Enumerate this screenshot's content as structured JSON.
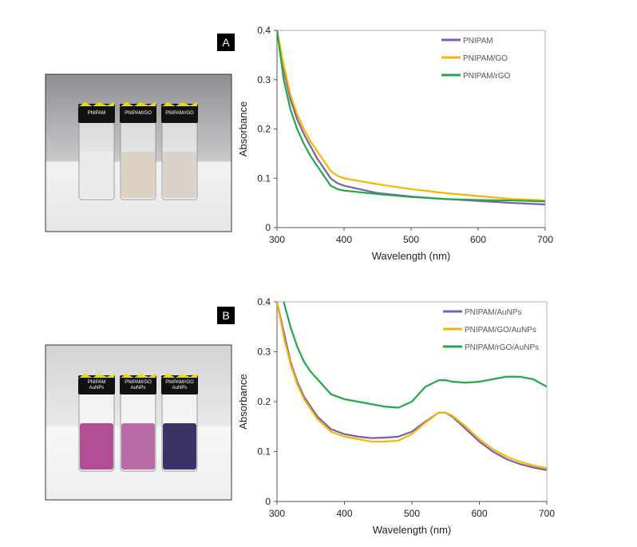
{
  "panels": [
    {
      "label": "A",
      "vials": [
        [
          "PNIPAM"
        ],
        [
          "PNIPAM/GO"
        ],
        [
          "PNIPAM/rGO"
        ]
      ]
    },
    {
      "label": "B",
      "vials": [
        [
          "PNIPAM",
          "AuNPs"
        ],
        [
          "PNIPAM/GO",
          "AuNPs"
        ],
        [
          "PNIPAM/rGO",
          "AuNPs"
        ]
      ]
    }
  ],
  "chart_data": [
    {
      "type": "line",
      "x_label": "Wavelength (nm)",
      "y_label": "Absorbance",
      "x": [
        300,
        310,
        320,
        330,
        340,
        350,
        360,
        370,
        380,
        390,
        400,
        450,
        500,
        550,
        600,
        650,
        700
      ],
      "series": [
        {
          "name": "PNIPAM",
          "color": "#7b5ea7",
          "values": [
            0.4,
            0.32,
            0.26,
            0.22,
            0.19,
            0.165,
            0.14,
            0.12,
            0.1,
            0.09,
            0.085,
            0.07,
            0.063,
            0.058,
            0.054,
            0.05,
            0.047
          ]
        },
        {
          "name": "PNIPAM/GO",
          "color": "#f5b800",
          "values": [
            0.4,
            0.33,
            0.27,
            0.23,
            0.2,
            0.175,
            0.155,
            0.135,
            0.115,
            0.105,
            0.1,
            0.088,
            0.078,
            0.07,
            0.064,
            0.058,
            0.055
          ]
        },
        {
          "name": "PNIPAM/rGO",
          "color": "#22a84a",
          "values": [
            0.4,
            0.3,
            0.24,
            0.2,
            0.17,
            0.145,
            0.125,
            0.105,
            0.085,
            0.078,
            0.075,
            0.068,
            0.062,
            0.058,
            0.056,
            0.055,
            0.053
          ]
        }
      ],
      "xlim": [
        300,
        700
      ],
      "xticks": [
        300,
        400,
        500,
        600,
        700
      ],
      "ylim": [
        0,
        0.4
      ],
      "yticks": [
        0,
        0.1,
        0.2,
        0.3,
        0.4
      ],
      "legend": "upper right"
    },
    {
      "type": "line",
      "x_label": "Wavelength (nm)",
      "y_label": "Absorbance",
      "x": [
        300,
        310,
        320,
        330,
        340,
        350,
        360,
        380,
        400,
        420,
        440,
        460,
        480,
        500,
        520,
        540,
        550,
        560,
        580,
        600,
        620,
        640,
        660,
        680,
        700
      ],
      "series": [
        {
          "name": "PNIPAM/AuNPs",
          "color": "#7b5ea7",
          "values": [
            0.4,
            0.34,
            0.28,
            0.24,
            0.21,
            0.19,
            0.17,
            0.145,
            0.135,
            0.13,
            0.127,
            0.128,
            0.13,
            0.14,
            0.16,
            0.178,
            0.178,
            0.17,
            0.145,
            0.12,
            0.1,
            0.085,
            0.075,
            0.068,
            0.063
          ]
        },
        {
          "name": "PNIPAM/GO/AuNPs",
          "color": "#f5b800",
          "values": [
            0.4,
            0.33,
            0.275,
            0.235,
            0.205,
            0.185,
            0.165,
            0.14,
            0.13,
            0.125,
            0.12,
            0.12,
            0.122,
            0.135,
            0.158,
            0.178,
            0.178,
            0.172,
            0.15,
            0.125,
            0.105,
            0.09,
            0.08,
            0.072,
            0.067
          ]
        },
        {
          "name": "PNIPAM/rGO/AuNPs",
          "color": "#22a84a",
          "values": [
            null,
            0.4,
            0.35,
            0.31,
            0.28,
            0.26,
            0.245,
            0.215,
            0.205,
            0.2,
            0.195,
            0.19,
            0.188,
            0.2,
            0.23,
            0.243,
            0.243,
            0.24,
            0.238,
            0.24,
            0.245,
            0.25,
            0.25,
            0.245,
            0.23
          ]
        }
      ],
      "xlim": [
        300,
        700
      ],
      "xticks": [
        300,
        400,
        500,
        600,
        700
      ],
      "ylim": [
        0,
        0.4
      ],
      "yticks": [
        0,
        0.1,
        0.2,
        0.3,
        0.4
      ],
      "legend": "upper right"
    }
  ]
}
